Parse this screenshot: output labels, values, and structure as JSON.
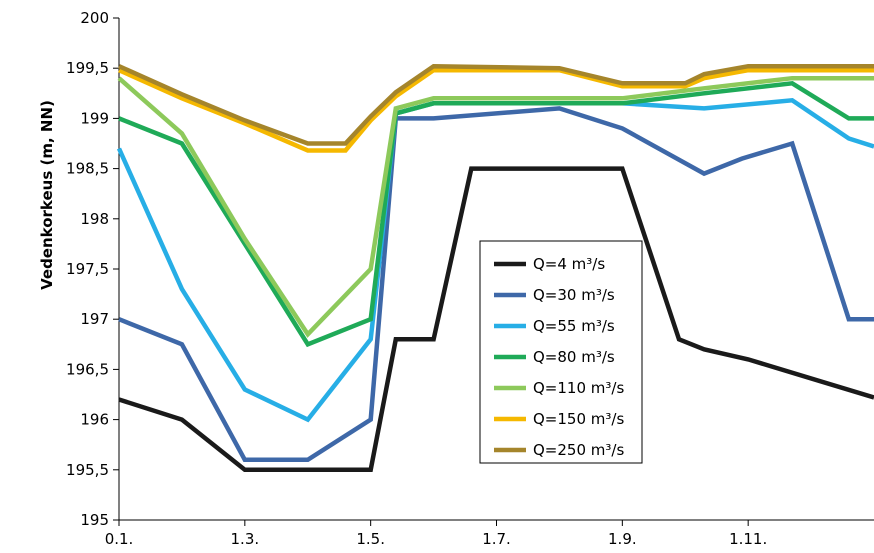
{
  "chart_data": {
    "type": "line",
    "title": "",
    "xlabel": "",
    "ylabel": "Vedenkorkeus (m, NN)",
    "xlim": [
      0,
      12
    ],
    "ylim": [
      195,
      200
    ],
    "x_ticks": [
      {
        "value": 0,
        "label": "0.1."
      },
      {
        "value": 2,
        "label": "1.3."
      },
      {
        "value": 4,
        "label": "1.5."
      },
      {
        "value": 6,
        "label": "1.7."
      },
      {
        "value": 8,
        "label": "1.9."
      },
      {
        "value": 10,
        "label": "1.11."
      }
    ],
    "y_ticks": [
      {
        "value": 195,
        "label": "195"
      },
      {
        "value": 195.5,
        "label": "195,5"
      },
      {
        "value": 196,
        "label": "196"
      },
      {
        "value": 196.5,
        "label": "196,5"
      },
      {
        "value": 197,
        "label": "197"
      },
      {
        "value": 197.5,
        "label": "197,5"
      },
      {
        "value": 198,
        "label": "198"
      },
      {
        "value": 198.5,
        "label": "198,5"
      },
      {
        "value": 199,
        "label": "199"
      },
      {
        "value": 199.5,
        "label": "199,5"
      },
      {
        "value": 200,
        "label": "200"
      }
    ],
    "grid": false,
    "legend_position": "center",
    "series": [
      {
        "name": "Q=4 m³/s",
        "color": "#1a1a1a",
        "x": [
          0,
          1,
          2,
          3,
          4,
          4.4,
          5,
          5.6,
          6.6,
          8,
          8.9,
          9.3,
          10,
          12
        ],
        "y": [
          196.2,
          196.0,
          195.5,
          195.5,
          195.5,
          196.8,
          196.8,
          198.5,
          198.5,
          198.5,
          196.8,
          196.7,
          196.6,
          196.22
        ]
      },
      {
        "name": "Q=30 m³/s",
        "color": "#3e68a8",
        "x": [
          0,
          1,
          2,
          3,
          4,
          4.4,
          5,
          7,
          8,
          9.3,
          9.9,
          10.7,
          11.6,
          12
        ],
        "y": [
          197.0,
          196.75,
          195.6,
          195.6,
          196.0,
          199.0,
          199.0,
          199.1,
          198.9,
          198.45,
          198.6,
          198.75,
          197.0,
          197.0
        ]
      },
      {
        "name": "Q=55 m³/s",
        "color": "#27aee6",
        "x": [
          0,
          1,
          2,
          3,
          4,
          4.4,
          5,
          7,
          8,
          9.3,
          10.7,
          11.6,
          12
        ],
        "y": [
          198.7,
          197.3,
          196.3,
          196.0,
          196.8,
          199.05,
          199.15,
          199.15,
          199.15,
          199.1,
          199.18,
          198.8,
          198.72
        ]
      },
      {
        "name": "Q=80 m³/s",
        "color": "#1faa58",
        "x": [
          0,
          1,
          2,
          3,
          4,
          4.4,
          5,
          7,
          8,
          9.3,
          10.7,
          11.6,
          12
        ],
        "y": [
          199.0,
          198.75,
          197.75,
          196.75,
          197.0,
          199.05,
          199.15,
          199.15,
          199.15,
          199.25,
          199.35,
          199.0,
          199.0
        ]
      },
      {
        "name": "Q=110 m³/s",
        "color": "#8dc95b",
        "x": [
          0,
          1,
          2,
          3,
          4,
          4.4,
          5,
          7,
          8,
          9.3,
          10.7,
          11.6,
          12
        ],
        "y": [
          199.4,
          198.85,
          197.8,
          196.85,
          197.5,
          199.1,
          199.2,
          199.2,
          199.2,
          199.3,
          199.4,
          199.4,
          199.4
        ]
      },
      {
        "name": "Q=150 m³/s",
        "color": "#f5b800",
        "x": [
          0,
          1,
          2,
          3,
          3.6,
          4,
          4.4,
          5,
          7,
          8,
          9,
          9.3,
          10,
          12
        ],
        "y": [
          199.48,
          199.2,
          198.95,
          198.68,
          198.68,
          198.98,
          199.22,
          199.48,
          199.48,
          199.32,
          199.32,
          199.4,
          199.48,
          199.48
        ]
      },
      {
        "name": "Q=250 m³/s",
        "color": "#a5852b",
        "x": [
          0,
          1,
          2,
          3,
          3.6,
          4,
          4.4,
          5,
          7,
          8,
          9,
          9.3,
          10,
          12
        ],
        "y": [
          199.52,
          199.24,
          198.98,
          198.75,
          198.75,
          199.02,
          199.26,
          199.52,
          199.5,
          199.35,
          199.35,
          199.44,
          199.52,
          199.52
        ]
      }
    ]
  }
}
